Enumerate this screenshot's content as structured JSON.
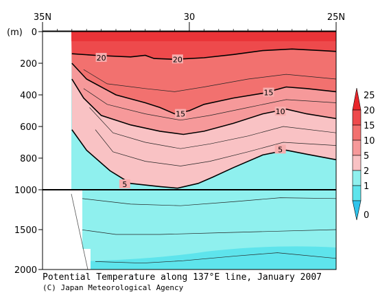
{
  "chart_data": {
    "type": "heatmap",
    "title": "Potential Temperature along 137°E line, January 2007",
    "credit": "(C) Japan Meteorological Agency",
    "x_ticks": [
      "35N",
      "30",
      "25N"
    ],
    "x_range_deg_north": [
      35,
      25
    ],
    "y_unit": "(m)",
    "y_ticks_upper": [
      "0",
      "200",
      "400",
      "600",
      "800",
      "1000"
    ],
    "y_ticks_lower": [
      "1500",
      "2000"
    ],
    "y_range_m": [
      0,
      2000
    ],
    "colorbar": {
      "labels": [
        "25",
        "20",
        "15",
        "10",
        "5",
        "2",
        "1",
        "0"
      ],
      "colors": [
        "#e8262b",
        "#ee4a4c",
        "#f2716f",
        "#f6999a",
        "#f9c2c4",
        "#8ff0ee",
        "#5ee4ec",
        "#2ec4ec"
      ]
    },
    "contour_labels": [
      {
        "text": "20",
        "lat": 33.0,
        "depth": 165
      },
      {
        "text": "20",
        "lat": 30.4,
        "depth": 175
      },
      {
        "text": "15",
        "lat": 27.3,
        "depth": 385
      },
      {
        "text": "15",
        "lat": 30.3,
        "depth": 520
      },
      {
        "text": "10",
        "lat": 26.9,
        "depth": 505
      },
      {
        "text": "5",
        "lat": 26.9,
        "depth": 745
      },
      {
        "text": "5",
        "lat": 32.2,
        "depth": 965
      }
    ],
    "contour_levels": [
      {
        "value": 20,
        "points": [
          [
            34.0,
            140
          ],
          [
            33.2,
            150
          ],
          [
            32.0,
            160
          ],
          [
            31.5,
            150
          ],
          [
            31.2,
            170
          ],
          [
            30.5,
            175
          ],
          [
            29.5,
            165
          ],
          [
            28.5,
            145
          ],
          [
            27.5,
            120
          ],
          [
            26.5,
            110
          ],
          [
            25.5,
            120
          ],
          [
            25.0,
            125
          ]
        ]
      },
      {
        "value": 15,
        "points": [
          [
            34.0,
            200
          ],
          [
            33.5,
            300
          ],
          [
            32.5,
            400
          ],
          [
            31.5,
            450
          ],
          [
            31.0,
            480
          ],
          [
            30.5,
            520
          ],
          [
            30.0,
            500
          ],
          [
            29.5,
            460
          ],
          [
            28.5,
            420
          ],
          [
            27.5,
            390
          ],
          [
            26.7,
            350
          ],
          [
            26.0,
            360
          ],
          [
            25.0,
            380
          ]
        ]
      },
      {
        "value": 10,
        "points": [
          [
            34.0,
            300
          ],
          [
            33.6,
            420
          ],
          [
            33.0,
            530
          ],
          [
            32.0,
            590
          ],
          [
            31.0,
            630
          ],
          [
            30.2,
            650
          ],
          [
            29.5,
            630
          ],
          [
            28.5,
            580
          ],
          [
            27.5,
            520
          ],
          [
            26.7,
            490
          ],
          [
            26.0,
            520
          ],
          [
            25.0,
            550
          ]
        ]
      },
      {
        "value": 5,
        "points": [
          [
            34.0,
            620
          ],
          [
            33.5,
            750
          ],
          [
            32.7,
            880
          ],
          [
            32.0,
            960
          ],
          [
            31.0,
            980
          ],
          [
            30.4,
            990
          ],
          [
            29.7,
            960
          ],
          [
            29.2,
            920
          ],
          [
            28.5,
            860
          ],
          [
            27.5,
            780
          ],
          [
            26.7,
            750
          ],
          [
            26.0,
            775
          ],
          [
            25.0,
            810
          ]
        ]
      }
    ]
  }
}
